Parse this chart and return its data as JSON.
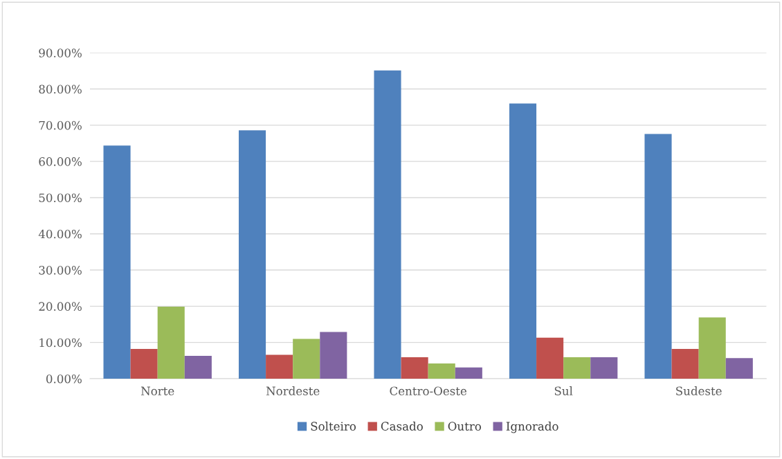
{
  "chart_data": {
    "type": "bar",
    "categories": [
      "Norte",
      "Nordeste",
      "Centro-Oeste",
      "Sul",
      "Sudeste"
    ],
    "series": [
      {
        "name": "Solteiro",
        "color": "#4f81bd",
        "values": [
          64.4,
          68.6,
          85.1,
          76.0,
          67.6
        ]
      },
      {
        "name": "Casado",
        "color": "#c0504d",
        "values": [
          8.2,
          6.6,
          5.9,
          11.3,
          8.2
        ]
      },
      {
        "name": "Outro",
        "color": "#9bbb59",
        "values": [
          19.9,
          11.0,
          4.2,
          5.9,
          16.9
        ]
      },
      {
        "name": "Ignorado",
        "color": "#8064a2",
        "values": [
          6.3,
          12.9,
          3.1,
          5.9,
          5.7
        ]
      }
    ],
    "ylim": [
      0,
      90
    ],
    "yticks": [
      {
        "value": 0,
        "label": "0.00%"
      },
      {
        "value": 10,
        "label": "10.00%"
      },
      {
        "value": 20,
        "label": "20.00%"
      },
      {
        "value": 30,
        "label": "30.00%"
      },
      {
        "value": 40,
        "label": "40.00%"
      },
      {
        "value": 50,
        "label": "50.00%"
      },
      {
        "value": 60,
        "label": "60.00%"
      },
      {
        "value": 70,
        "label": "70.00%"
      },
      {
        "value": 80,
        "label": "80.00%"
      },
      {
        "value": 90,
        "label": "90.00%"
      }
    ],
    "grid": "y",
    "legend": "bottom"
  }
}
